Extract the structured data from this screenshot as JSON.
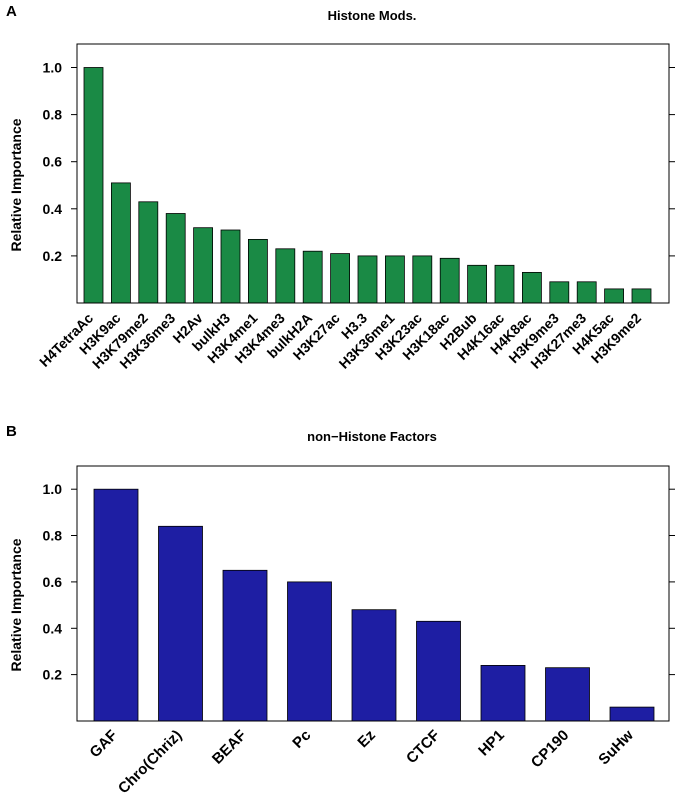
{
  "chart_data": [
    {
      "panel": "A",
      "type": "bar",
      "title": "Histone Mods.",
      "xlabel": "",
      "ylabel": "Relative Importance",
      "ylim": [
        0,
        1.1
      ],
      "yticks": [
        0.2,
        0.4,
        0.6,
        0.8,
        1.0
      ],
      "ytick_labels": [
        "0.2",
        "0.4",
        "0.6",
        "0.8",
        "1.0"
      ],
      "grid": false,
      "bar_color": "#1a8a45",
      "categories": [
        "H4TetraAc",
        "H3K9ac",
        "H3K79me2",
        "H3K36me3",
        "H2Av",
        "bulkH3",
        "H3K4me1",
        "H3K4me3",
        "bulkH2A",
        "H3K27ac",
        "H3.3",
        "H3K36me1",
        "H3K23ac",
        "H3K18ac",
        "H2Bub",
        "H4K16ac",
        "H4K8ac",
        "H3K9me3",
        "H3K27me3",
        "H4K5ac",
        "H3K9me2"
      ],
      "values": [
        1.0,
        0.51,
        0.43,
        0.38,
        0.32,
        0.31,
        0.27,
        0.23,
        0.22,
        0.21,
        0.2,
        0.2,
        0.2,
        0.19,
        0.16,
        0.16,
        0.13,
        0.09,
        0.09,
        0.06,
        0.06
      ]
    },
    {
      "panel": "B",
      "type": "bar",
      "title": "non−Histone Factors",
      "xlabel": "",
      "ylabel": "Relative Importance",
      "ylim": [
        0,
        1.1
      ],
      "yticks": [
        0.2,
        0.4,
        0.6,
        0.8,
        1.0
      ],
      "ytick_labels": [
        "0.2",
        "0.4",
        "0.6",
        "0.8",
        "1.0"
      ],
      "grid": false,
      "bar_color": "#1e1ea3",
      "categories": [
        "GAF",
        "Chro(Chriz)",
        "BEAF",
        "Pc",
        "Ez",
        "CTCF",
        "HP1",
        "CP190",
        "SuHw"
      ],
      "values": [
        1.0,
        0.84,
        0.65,
        0.6,
        0.48,
        0.43,
        0.24,
        0.23,
        0.06
      ]
    }
  ]
}
